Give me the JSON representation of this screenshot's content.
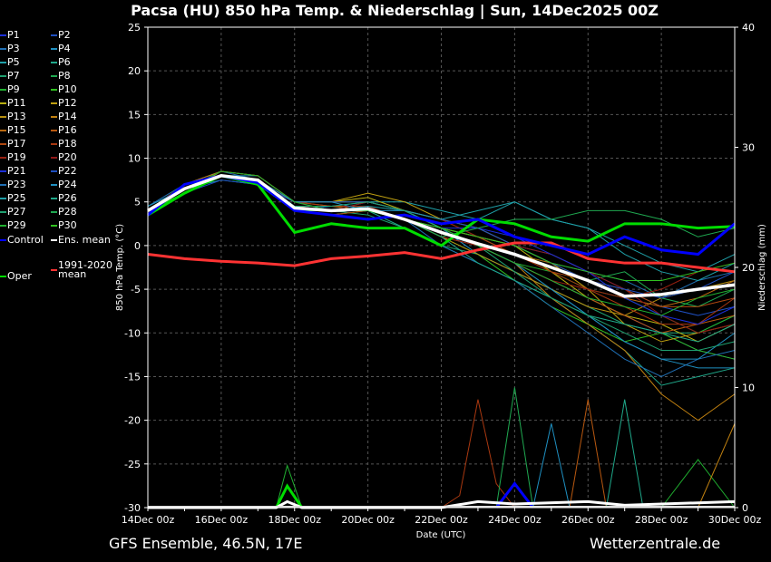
{
  "title": "Pacsa  (HU)  850 hPa Temp. & Niederschlag | Sun, 14Dec2025 00Z",
  "footer": {
    "left": "GFS Ensemble, 46.5N, 17E",
    "right": "Wetterzentrale.de"
  },
  "legend": [
    {
      "label": "P1",
      "color": "#1c2fd8"
    },
    {
      "label": "P2",
      "color": "#1f4fc0"
    },
    {
      "label": "P3",
      "color": "#1f6fb4"
    },
    {
      "label": "P4",
      "color": "#1f8fc0"
    },
    {
      "label": "P5",
      "color": "#1fa0a8"
    },
    {
      "label": "P6",
      "color": "#1fa88a"
    },
    {
      "label": "P7",
      "color": "#1fa070"
    },
    {
      "label": "P8",
      "color": "#1fa850"
    },
    {
      "label": "P9",
      "color": "#20b030"
    },
    {
      "label": "P10",
      "color": "#30c020"
    },
    {
      "label": "P11",
      "color": "#b8b010"
    },
    {
      "label": "P12",
      "color": "#c0a010"
    },
    {
      "label": "P13",
      "color": "#b89010"
    },
    {
      "label": "P14",
      "color": "#c08010"
    },
    {
      "label": "P15",
      "color": "#b86810"
    },
    {
      "label": "P16",
      "color": "#b85810"
    },
    {
      "label": "P17",
      "color": "#b04810"
    },
    {
      "label": "P18",
      "color": "#a83810"
    },
    {
      "label": "P19",
      "color": "#982010"
    },
    {
      "label": "P20",
      "color": "#901818"
    },
    {
      "label": "P21",
      "color": "#1c2fd8"
    },
    {
      "label": "P22",
      "color": "#1f4fc0"
    },
    {
      "label": "P23",
      "color": "#1f6fb4"
    },
    {
      "label": "P24",
      "color": "#1f8fc0"
    },
    {
      "label": "P25",
      "color": "#1fa0a8"
    },
    {
      "label": "P26",
      "color": "#1fa88a"
    },
    {
      "label": "P27",
      "color": "#1fa070"
    },
    {
      "label": "P28",
      "color": "#1fa850"
    },
    {
      "label": "P29",
      "color": "#20b030"
    },
    {
      "label": "P30",
      "color": "#30c020"
    },
    {
      "label": "Control",
      "color": "#0000ff"
    },
    {
      "label": "Ens. mean",
      "color": "#ffffff"
    },
    {
      "label": "1991-2020 mean",
      "color": "#ff3333"
    },
    {
      "label": "Oper",
      "color": "#00dd00"
    }
  ],
  "chart_data": {
    "type": "line",
    "title": "Pacsa  (HU)  850 hPa Temp. & Niederschlag | Sun, 14Dec2025 00Z",
    "xlabel": "Date (UTC)",
    "ylabel": "850 hPa Temp. (°C)",
    "y2label": "Niederschlag (mm)",
    "ylim": [
      -30,
      25
    ],
    "y2lim": [
      0,
      40
    ],
    "yticks": [
      "25",
      "20",
      "15",
      "10",
      "5",
      "0",
      "-5",
      "-10",
      "-15",
      "-20",
      "-25",
      "-30"
    ],
    "y2ticks": [
      "40",
      "30",
      "20",
      "10",
      "0"
    ],
    "xticks": [
      "14Dec 00z",
      "16Dec 00z",
      "18Dec 00z",
      "20Dec 00z",
      "22Dec 00z",
      "24Dec 00z",
      "26Dec 00z",
      "28Dec 00z",
      "30Dec 00z"
    ],
    "grid": true,
    "x_days": [
      0,
      1,
      2,
      3,
      4,
      5,
      6,
      7,
      8,
      9,
      10,
      11,
      12,
      13,
      14,
      15,
      16
    ],
    "members": [
      [
        4,
        6,
        8,
        7.5,
        4.5,
        4,
        4.5,
        3,
        1,
        0,
        -2,
        -4,
        -6,
        -8,
        -10,
        -12,
        -13
      ],
      [
        4,
        6.5,
        8,
        7,
        4,
        3.5,
        4,
        3,
        2,
        1,
        0,
        -2,
        -3,
        -5,
        -7,
        -8,
        -7
      ],
      [
        4.5,
        7,
        8.5,
        7.5,
        4,
        4.5,
        5,
        4,
        3,
        2,
        0,
        -1,
        -3,
        -4,
        -6,
        -4,
        -3
      ],
      [
        4,
        6,
        8,
        8,
        5,
        5,
        5,
        4,
        2,
        -1,
        -3,
        -5,
        -8,
        -11,
        -13,
        -14,
        -14
      ],
      [
        4,
        6.5,
        7.5,
        7,
        4,
        4,
        5,
        5,
        4,
        3,
        5,
        3,
        2,
        0,
        -2,
        -3,
        -1
      ],
      [
        4,
        6,
        8,
        7,
        5,
        4,
        4,
        2,
        0,
        -2,
        -4,
        -6,
        -9,
        -12,
        -16,
        -15,
        -14
      ],
      [
        4.5,
        6.5,
        8,
        7.5,
        4.5,
        4,
        3.5,
        2,
        0,
        -1,
        -3,
        -5,
        -7,
        -9,
        -10,
        -10,
        -8
      ],
      [
        4,
        6,
        8,
        7,
        4,
        4,
        4,
        3,
        2,
        1,
        -1,
        -2,
        -4,
        -3,
        -6,
        -7,
        -5
      ],
      [
        3.5,
        6,
        8,
        7,
        5,
        5,
        5,
        4,
        2,
        0,
        -2,
        -3,
        -5,
        -6,
        -8,
        -10,
        -8
      ],
      [
        4,
        6.5,
        8,
        7.5,
        4,
        3.5,
        4,
        3,
        1,
        -1,
        -4,
        -7,
        -9,
        -11,
        -10,
        -12,
        -13
      ],
      [
        4,
        6,
        8.5,
        8,
        5,
        5,
        5.5,
        4,
        2,
        1,
        0,
        -3,
        -6,
        -8,
        -9,
        -11,
        -9
      ],
      [
        4,
        6,
        8,
        7,
        5,
        5,
        6,
        5,
        3,
        2,
        0,
        -2,
        -5,
        -9,
        -11,
        -10,
        -9
      ],
      [
        4,
        6.5,
        8,
        7,
        4,
        4,
        4,
        3,
        1,
        -1,
        -3,
        -5,
        -7,
        -8,
        -6,
        -5,
        -4
      ],
      [
        4,
        7,
        8.5,
        8,
        5,
        4.5,
        4,
        3,
        1,
        0,
        -2,
        -6,
        -9,
        -12,
        -17,
        -20,
        -17
      ],
      [
        4,
        6,
        8,
        7.5,
        5,
        5,
        5,
        4,
        3,
        1,
        -1,
        -2,
        -4,
        -6,
        -7,
        -6,
        -4
      ],
      [
        4,
        6.5,
        8,
        7,
        4.5,
        4,
        4,
        3,
        2,
        0,
        -2,
        -4,
        -6,
        -8,
        -10,
        -9,
        -8
      ],
      [
        3.5,
        6,
        8,
        7.5,
        4,
        3.5,
        4,
        3,
        2,
        0,
        -1,
        -3,
        -4,
        -5,
        -7,
        -7,
        -6
      ],
      [
        4,
        6.5,
        8.5,
        8,
        5,
        4.5,
        4.5,
        3,
        2,
        1,
        -1,
        -3,
        -5,
        -7,
        -9,
        -9,
        -6
      ],
      [
        4,
        6,
        8,
        7,
        5,
        4,
        4,
        3,
        1,
        0,
        -2,
        -4,
        -5,
        -6,
        -5,
        -3,
        -2
      ],
      [
        4,
        6,
        8,
        7.5,
        4,
        4,
        5,
        4,
        3,
        1,
        0,
        -1,
        -3,
        -5,
        -8,
        -10,
        -9
      ],
      [
        4,
        6.5,
        8,
        7,
        4,
        4,
        4,
        3,
        2,
        2,
        1,
        -1,
        -3,
        -6,
        -8,
        -9,
        -7
      ],
      [
        4,
        6,
        7.5,
        7,
        5,
        5,
        5,
        4,
        3,
        2,
        0,
        -2,
        -4,
        -5,
        -6,
        -5,
        -3
      ],
      [
        4,
        6,
        8,
        7,
        4,
        4,
        4,
        3,
        0,
        -2,
        -4,
        -7,
        -10,
        -13,
        -15,
        -13,
        -12
      ],
      [
        4.5,
        6.5,
        8,
        7.5,
        5,
        5,
        4,
        4,
        2,
        0,
        -2,
        -5,
        -8,
        -11,
        -13,
        -13,
        -10
      ],
      [
        4,
        6,
        8,
        7,
        4,
        4,
        4.5,
        4,
        3,
        4,
        5,
        3,
        2,
        -1,
        -3,
        -4,
        -2
      ],
      [
        4,
        6.5,
        8,
        7.5,
        4,
        4,
        4,
        3,
        1,
        -2,
        -4,
        -6,
        -8,
        -9,
        -10,
        -11,
        -9
      ],
      [
        4,
        6,
        8,
        7,
        4.5,
        4.5,
        5,
        4,
        2,
        0,
        -3,
        -6,
        -8,
        -10,
        -12,
        -12,
        -11
      ],
      [
        3.5,
        6,
        8,
        7,
        4,
        4,
        4,
        3,
        1,
        2,
        3,
        3,
        4,
        4,
        3,
        1,
        2
      ],
      [
        4,
        6.5,
        8.5,
        8,
        5,
        4,
        4,
        3,
        2,
        0,
        -2,
        -4,
        -6,
        -7,
        -8,
        -6,
        -5
      ],
      [
        4,
        6,
        8,
        7,
        4,
        4,
        4,
        3,
        2,
        1,
        0,
        -2,
        -3,
        -4,
        -4,
        -3,
        -2
      ]
    ],
    "control": [
      3.5,
      7,
      8,
      7.2,
      4,
      3.5,
      3,
      3.5,
      2.5,
      3,
      1,
      0,
      -1,
      1,
      -0.5,
      -1,
      2.5
    ],
    "ens_mean": [
      4,
      6.5,
      8,
      7.5,
      4.3,
      4,
      4.2,
      3,
      1.5,
      0.2,
      -1,
      -2.5,
      -4,
      -5.8,
      -5.6,
      -5,
      -4.5
    ],
    "oper": [
      3.5,
      6,
      8,
      7,
      1.5,
      2.5,
      2,
      2,
      0,
      3,
      2.5,
      1,
      0.5,
      2.5,
      2.5,
      2,
      2.2
    ],
    "climate_mean": [
      -1,
      -1.5,
      -1.8,
      -2,
      -2.3,
      -1.5,
      -1.2,
      -0.8,
      -1.5,
      -0.5,
      0.3,
      0.3,
      -1.5,
      -2,
      -2,
      -2.5,
      -3
    ],
    "precip": [
      {
        "member": "P18",
        "points": [
          [
            8,
            0
          ],
          [
            8.5,
            1
          ],
          [
            9,
            9
          ],
          [
            9.5,
            2
          ],
          [
            10,
            0
          ]
        ]
      },
      {
        "member": "P8",
        "points": [
          [
            9.5,
            0
          ],
          [
            10,
            10
          ],
          [
            10.5,
            0
          ]
        ]
      },
      {
        "member": "P4",
        "points": [
          [
            10.5,
            0
          ],
          [
            11,
            7
          ],
          [
            11.5,
            0
          ]
        ]
      },
      {
        "member": "P16",
        "points": [
          [
            11.5,
            0
          ],
          [
            12,
            9
          ],
          [
            12.5,
            0
          ]
        ]
      },
      {
        "member": "P6",
        "points": [
          [
            12.5,
            0
          ],
          [
            13,
            9
          ],
          [
            13.5,
            0
          ]
        ]
      },
      {
        "member": "P9",
        "points": [
          [
            3.5,
            0
          ],
          [
            3.8,
            3.5
          ],
          [
            4.2,
            0
          ]
        ]
      },
      {
        "member": "P29",
        "points": [
          [
            14,
            0
          ],
          [
            15,
            4
          ],
          [
            15.5,
            2
          ],
          [
            16,
            0
          ]
        ]
      },
      {
        "member": "P14",
        "points": [
          [
            15,
            0
          ],
          [
            16,
            7
          ]
        ]
      },
      {
        "member": "Control",
        "points": [
          [
            9.5,
            0
          ],
          [
            10,
            2
          ],
          [
            10.5,
            0
          ]
        ]
      },
      {
        "member": "Oper",
        "points": [
          [
            3.5,
            0
          ],
          [
            3.8,
            1.8
          ],
          [
            4.2,
            0
          ]
        ]
      },
      {
        "member": "Ens. mean",
        "points": [
          [
            0,
            0
          ],
          [
            3.5,
            0
          ],
          [
            3.8,
            0.5
          ],
          [
            4.2,
            0
          ],
          [
            8,
            0
          ],
          [
            9,
            0.5
          ],
          [
            10,
            0.3
          ],
          [
            12,
            0.5
          ],
          [
            13,
            0.2
          ],
          [
            16,
            0.5
          ]
        ]
      }
    ]
  }
}
